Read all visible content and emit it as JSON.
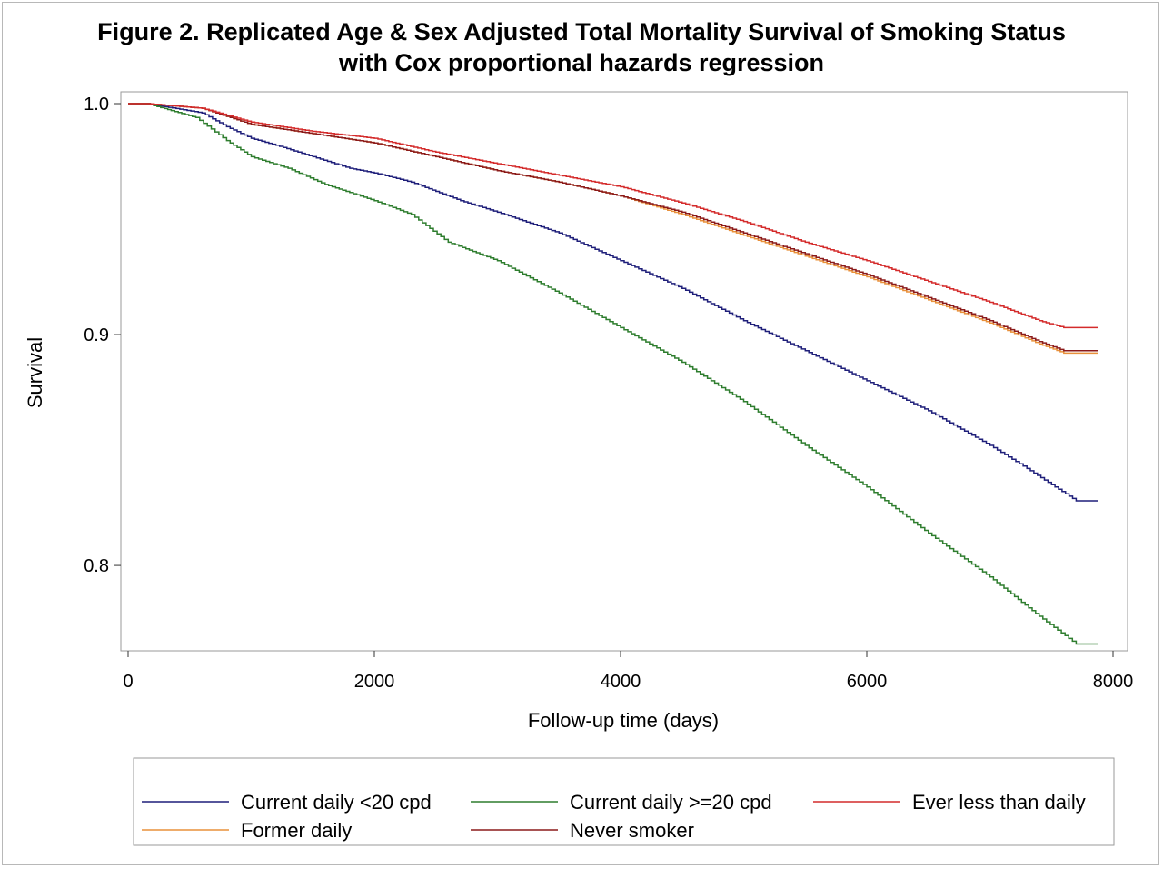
{
  "chart_data": {
    "type": "line",
    "title": "Figure 2. Replicated Age & Sex Adjusted Total Mortality Survival of Smoking Status",
    "subtitle": "with Cox proportional hazards regression",
    "xlabel": "Follow-up time (days)",
    "ylabel": "Survival",
    "xlim": [
      0,
      8000
    ],
    "ylim": [
      0.765,
      1.0
    ],
    "xticks": [
      "0",
      "2000",
      "4000",
      "6000",
      "8000"
    ],
    "yticks": [
      "0.8",
      "0.9",
      "1.0"
    ],
    "grid": false,
    "legend_position": "bottom",
    "series": [
      {
        "name": "Current daily <20 cpd",
        "color": "#1f1f7a",
        "x": [
          0,
          150,
          600,
          800,
          1000,
          1200,
          1500,
          1800,
          2000,
          2300,
          2500,
          2700,
          3000,
          3500,
          4000,
          4500,
          5000,
          5500,
          6000,
          6500,
          7000,
          7300,
          7700,
          7880
        ],
        "y": [
          1.0,
          1.0,
          0.996,
          0.99,
          0.985,
          0.982,
          0.977,
          0.972,
          0.97,
          0.966,
          0.962,
          0.958,
          0.953,
          0.944,
          0.932,
          0.92,
          0.906,
          0.893,
          0.88,
          0.867,
          0.852,
          0.842,
          0.828,
          0.828
        ]
      },
      {
        "name": "Current daily >=20 cpd",
        "color": "#2e7d2e",
        "x": [
          0,
          150,
          550,
          800,
          1000,
          1300,
          1600,
          2000,
          2300,
          2600,
          3000,
          3500,
          4000,
          4500,
          5000,
          5500,
          6000,
          6500,
          7000,
          7400,
          7700,
          7880
        ],
        "y": [
          1.0,
          1.0,
          0.994,
          0.984,
          0.977,
          0.972,
          0.965,
          0.958,
          0.952,
          0.94,
          0.932,
          0.918,
          0.903,
          0.888,
          0.871,
          0.852,
          0.834,
          0.814,
          0.795,
          0.778,
          0.766,
          0.766
        ]
      },
      {
        "name": "Ever less than daily",
        "color": "#d42b2b",
        "x": [
          0,
          150,
          600,
          1000,
          1500,
          2000,
          2500,
          3000,
          3500,
          4000,
          4500,
          5000,
          5500,
          6000,
          6500,
          7000,
          7400,
          7600,
          7880
        ],
        "y": [
          1.0,
          1.0,
          0.998,
          0.992,
          0.988,
          0.985,
          0.979,
          0.974,
          0.969,
          0.964,
          0.957,
          0.949,
          0.94,
          0.932,
          0.923,
          0.914,
          0.906,
          0.903,
          0.903
        ]
      },
      {
        "name": "Former daily",
        "color": "#e8903a",
        "x": [
          0,
          150,
          600,
          1000,
          1500,
          2000,
          2500,
          3000,
          3500,
          4000,
          4500,
          5000,
          5500,
          6000,
          6500,
          7000,
          7400,
          7600,
          7880
        ],
        "y": [
          1.0,
          1.0,
          0.998,
          0.991,
          0.987,
          0.983,
          0.977,
          0.971,
          0.966,
          0.96,
          0.952,
          0.943,
          0.934,
          0.925,
          0.915,
          0.905,
          0.896,
          0.892,
          0.892
        ]
      },
      {
        "name": "Never smoker",
        "color": "#8b1a1a",
        "x": [
          0,
          150,
          600,
          1000,
          1500,
          2000,
          2500,
          3000,
          3500,
          4000,
          4500,
          5000,
          5500,
          6000,
          6500,
          7000,
          7400,
          7600,
          7880
        ],
        "y": [
          1.0,
          1.0,
          0.998,
          0.991,
          0.987,
          0.983,
          0.977,
          0.971,
          0.966,
          0.96,
          0.953,
          0.944,
          0.935,
          0.926,
          0.916,
          0.906,
          0.897,
          0.893,
          0.893
        ]
      }
    ]
  }
}
